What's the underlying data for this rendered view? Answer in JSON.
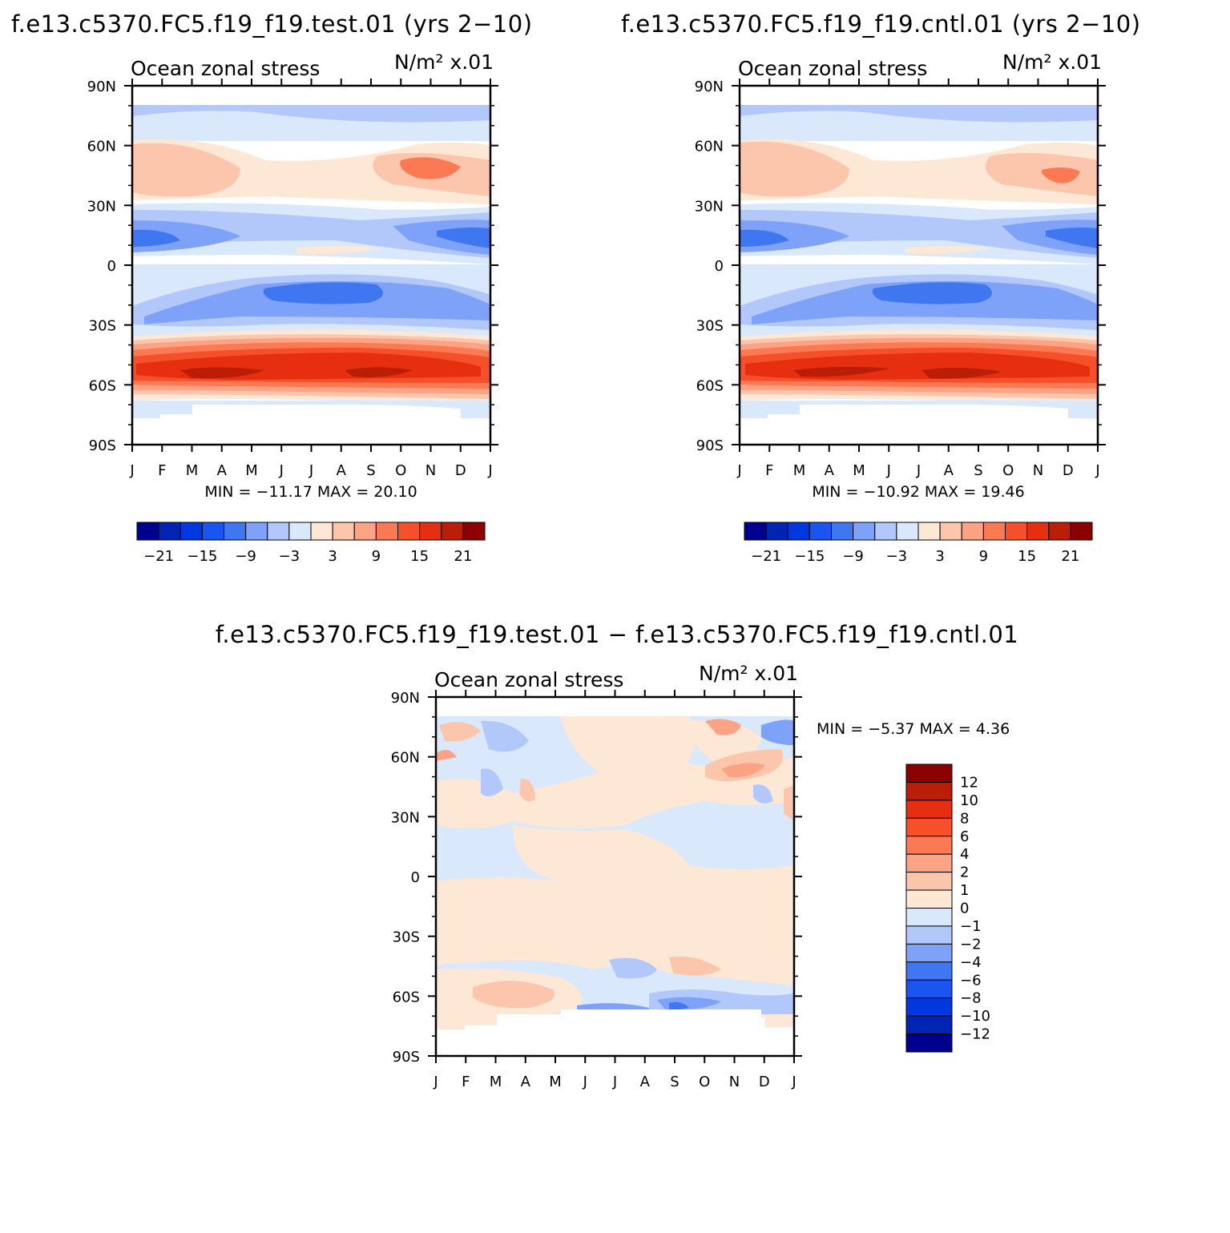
{
  "colors": {
    "negative": [
      "#00008f",
      "#0024b3",
      "#0038e0",
      "#1a55f2",
      "#3f77f0",
      "#7ea2f7",
      "#b2c8fb",
      "#d9e8fb"
    ],
    "positive": [
      "#fde8d6",
      "#fcc6ad",
      "#fca385",
      "#fb7a53",
      "#f6502a",
      "#e52f10",
      "#ba1e06",
      "#8b0000"
    ],
    "contour": {
      "strong_neg": "#1a55f2",
      "med_neg": "#3f77f0",
      "light_neg": "#7ea2f7",
      "pale_neg": "#b2c8fb",
      "faint_neg": "#d9e8fb",
      "faint_pos": "#fde8d6",
      "pale_pos": "#fcc6ad",
      "light_pos": "#fca385",
      "med_pos": "#fb7a53",
      "strong_pos": "#f6502a",
      "deep_pos": "#e52f10",
      "darker_pos": "#ba1e06"
    }
  },
  "chart_data": [
    {
      "type": "heatmap",
      "id": "test",
      "title": "f.e13.c5370.FC5.f19_f19.test.01 (yrs 2−10)",
      "subtitle_left": "Ocean zonal stress",
      "units": "N/m² x.01",
      "x_ticks": [
        "J",
        "F",
        "M",
        "A",
        "M",
        "J",
        "J",
        "A",
        "S",
        "O",
        "N",
        "D",
        "J"
      ],
      "y_ticks": [
        "90N",
        "60N",
        "30N",
        "0",
        "30S",
        "60S",
        "90S"
      ],
      "xlim": [
        0,
        12
      ],
      "ylim": [
        -90,
        90
      ],
      "min_label": "MIN = −11.17 MAX =   20.10",
      "colorbar": {
        "orientation": "horizontal",
        "labels": [
          "−21",
          "−15",
          "−9",
          "−3",
          "3",
          "9",
          "15",
          "21"
        ]
      }
    },
    {
      "type": "heatmap",
      "id": "cntl",
      "title": "f.e13.c5370.FC5.f19_f19.cntl.01 (yrs 2−10)",
      "subtitle_left": "Ocean zonal stress",
      "units": "N/m² x.01",
      "x_ticks": [
        "J",
        "F",
        "M",
        "A",
        "M",
        "J",
        "J",
        "A",
        "S",
        "O",
        "N",
        "D",
        "J"
      ],
      "y_ticks": [
        "90N",
        "60N",
        "30N",
        "0",
        "30S",
        "60S",
        "90S"
      ],
      "xlim": [
        0,
        12
      ],
      "ylim": [
        -90,
        90
      ],
      "min_label": "MIN = −10.92 MAX =   19.46",
      "colorbar": {
        "orientation": "horizontal",
        "labels": [
          "−21",
          "−15",
          "−9",
          "−3",
          "3",
          "9",
          "15",
          "21"
        ]
      }
    },
    {
      "type": "heatmap",
      "id": "diff",
      "title": "f.e13.c5370.FC5.f19_f19.test.01 − f.e13.c5370.FC5.f19_f19.cntl.01",
      "subtitle_left": "Ocean zonal stress",
      "units": "N/m² x.01",
      "x_ticks": [
        "J",
        "F",
        "M",
        "A",
        "M",
        "J",
        "J",
        "A",
        "S",
        "O",
        "N",
        "D",
        "J"
      ],
      "y_ticks": [
        "90N",
        "60N",
        "30N",
        "0",
        "30S",
        "60S",
        "90S"
      ],
      "xlim": [
        0,
        12
      ],
      "ylim": [
        -90,
        90
      ],
      "min_label": "MIN =   −5.37 MAX =    4.36",
      "colorbar": {
        "orientation": "vertical",
        "labels": [
          "12",
          "10",
          "8",
          "6",
          "4",
          "2",
          "1",
          "0",
          "−1",
          "−2",
          "−4",
          "−6",
          "−8",
          "−10",
          "−12"
        ]
      }
    }
  ]
}
